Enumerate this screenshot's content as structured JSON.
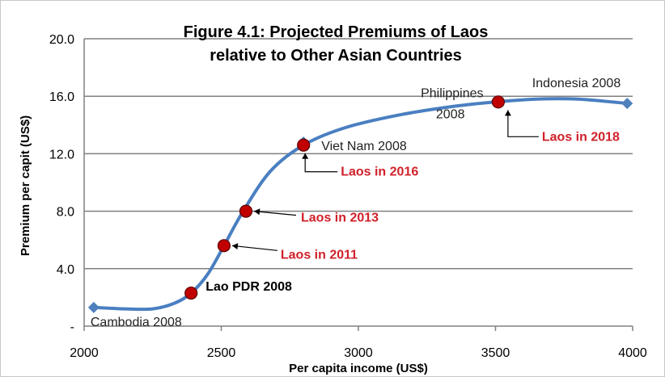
{
  "chart_data": {
    "type": "line",
    "title_line1": "Figure 4.1: Projected Premiums  of Laos",
    "title_line2": "relative to Other Asian Countries",
    "xlabel": "Per capita income (US$)",
    "ylabel": "Premium per capit (US$)",
    "xlim": [
      2000,
      4000
    ],
    "ylim": [
      0,
      20
    ],
    "x_ticks": [
      "2000",
      "2500",
      "3000",
      "3500",
      "4000"
    ],
    "y_ticks": [
      "-",
      "4.0",
      "8.0",
      "12.0",
      "16.0",
      "20.0"
    ],
    "grid": "horizontal",
    "curve": [
      {
        "x": 2040,
        "y": 1.3
      },
      {
        "x": 2150,
        "y": 1.2
      },
      {
        "x": 2250,
        "y": 1.2
      },
      {
        "x": 2330,
        "y": 1.6
      },
      {
        "x": 2390,
        "y": 2.3
      },
      {
        "x": 2450,
        "y": 3.6
      },
      {
        "x": 2510,
        "y": 5.6
      },
      {
        "x": 2580,
        "y": 8.0
      },
      {
        "x": 2680,
        "y": 10.8
      },
      {
        "x": 2800,
        "y": 12.6
      },
      {
        "x": 2950,
        "y": 13.8
      },
      {
        "x": 3150,
        "y": 14.7
      },
      {
        "x": 3350,
        "y": 15.3
      },
      {
        "x": 3500,
        "y": 15.6
      },
      {
        "x": 3650,
        "y": 15.8
      },
      {
        "x": 3800,
        "y": 15.8
      },
      {
        "x": 3980,
        "y": 15.5
      }
    ],
    "countries": [
      {
        "label": "Cambodia 2008",
        "x": 2035,
        "y": 1.3
      },
      {
        "label": "Viet Nam 2008",
        "x": 2800,
        "y": 12.8
      },
      {
        "label_line1": "Philippines",
        "label_line2": "2008",
        "x": 3500,
        "y": 15.6
      },
      {
        "label": "Indonesia 2008",
        "x": 3980,
        "y": 15.5
      }
    ],
    "laos_points": [
      {
        "label": "Lao PDR 2008",
        "x": 2390,
        "y": 2.3,
        "highlight": false
      },
      {
        "label": "Laos in 2011",
        "x": 2510,
        "y": 5.6,
        "highlight": true
      },
      {
        "label": "Laos in 2013",
        "x": 2590,
        "y": 8.0,
        "highlight": true
      },
      {
        "label": "Laos in 2016",
        "x": 2800,
        "y": 12.6,
        "highlight": true
      },
      {
        "label": "Laos in 2018",
        "x": 3510,
        "y": 15.6,
        "highlight": true
      }
    ],
    "colors": {
      "line": "#4a7fc1",
      "country_marker": "#4f81bd",
      "laos_marker": "#c00000",
      "laos_label": "#d0202a",
      "gridline": "#808080"
    }
  }
}
